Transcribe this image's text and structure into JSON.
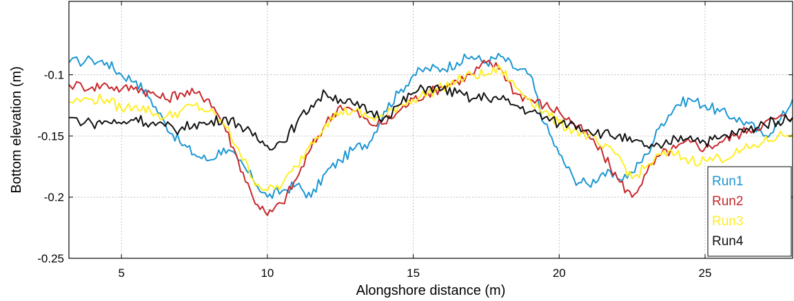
{
  "chart_data": {
    "type": "line",
    "xlabel": "Alongshore distance (m)",
    "ylabel": "Bottom elevation (m)",
    "xlim": [
      3.2,
      28
    ],
    "ylim": [
      -0.25,
      -0.04
    ],
    "xticks": [
      5,
      10,
      15,
      20,
      25
    ],
    "yticks": [
      -0.25,
      -0.2,
      -0.15,
      -0.1
    ],
    "xtick_labels": [
      "5",
      "10",
      "15",
      "20",
      "25"
    ],
    "ytick_labels": [
      "-0.25",
      "-0.2",
      "-0.15",
      "-0.1"
    ],
    "grid": true,
    "legend_position": "bottom-right",
    "series": [
      {
        "name": "Run1",
        "color": "#1a96d2",
        "x": [
          3.2,
          4.0,
          4.5,
          5.0,
          5.5,
          6.0,
          6.5,
          7.0,
          7.5,
          8.0,
          8.5,
          9.0,
          9.5,
          10.0,
          10.5,
          11.0,
          11.5,
          12.0,
          12.5,
          13.0,
          13.5,
          14.0,
          14.5,
          15.0,
          15.5,
          16.0,
          16.5,
          17.0,
          17.5,
          18.0,
          18.5,
          19.0,
          19.5,
          20.0,
          20.5,
          21.0,
          21.5,
          22.0,
          22.5,
          23.0,
          23.5,
          24.0,
          24.5,
          25.0,
          25.5,
          26.0,
          26.5,
          27.0,
          27.5,
          28.0
        ],
        "y": [
          -0.09,
          -0.088,
          -0.09,
          -0.1,
          -0.105,
          -0.12,
          -0.14,
          -0.155,
          -0.165,
          -0.17,
          -0.16,
          -0.17,
          -0.185,
          -0.2,
          -0.195,
          -0.19,
          -0.2,
          -0.18,
          -0.17,
          -0.16,
          -0.155,
          -0.13,
          -0.115,
          -0.1,
          -0.095,
          -0.095,
          -0.09,
          -0.085,
          -0.09,
          -0.085,
          -0.095,
          -0.1,
          -0.14,
          -0.165,
          -0.185,
          -0.19,
          -0.18,
          -0.185,
          -0.18,
          -0.165,
          -0.14,
          -0.125,
          -0.12,
          -0.125,
          -0.13,
          -0.135,
          -0.14,
          -0.15,
          -0.14,
          -0.12
        ]
      },
      {
        "name": "Run2",
        "color": "#c8262b",
        "x": [
          3.2,
          4.0,
          4.5,
          5.0,
          5.5,
          6.0,
          6.5,
          7.0,
          7.5,
          8.0,
          8.5,
          9.0,
          9.5,
          10.0,
          10.5,
          11.0,
          11.5,
          12.0,
          12.5,
          13.0,
          13.5,
          14.0,
          14.5,
          15.0,
          15.5,
          16.0,
          16.5,
          17.0,
          17.5,
          18.0,
          18.5,
          19.0,
          19.5,
          20.0,
          20.5,
          21.0,
          21.5,
          22.0,
          22.5,
          23.0,
          23.5,
          24.0,
          24.5,
          25.0,
          25.5,
          26.0,
          26.5,
          27.0,
          27.5,
          28.0
        ],
        "y": [
          -0.108,
          -0.11,
          -0.108,
          -0.112,
          -0.11,
          -0.115,
          -0.12,
          -0.115,
          -0.115,
          -0.12,
          -0.14,
          -0.17,
          -0.2,
          -0.215,
          -0.205,
          -0.185,
          -0.16,
          -0.14,
          -0.125,
          -0.13,
          -0.14,
          -0.14,
          -0.13,
          -0.12,
          -0.115,
          -0.11,
          -0.105,
          -0.1,
          -0.09,
          -0.095,
          -0.115,
          -0.12,
          -0.125,
          -0.13,
          -0.14,
          -0.15,
          -0.165,
          -0.185,
          -0.2,
          -0.18,
          -0.165,
          -0.16,
          -0.155,
          -0.16,
          -0.155,
          -0.15,
          -0.145,
          -0.14,
          -0.135,
          -0.135
        ]
      },
      {
        "name": "Run3",
        "color": "#ffee22",
        "x": [
          3.2,
          4.0,
          4.5,
          5.0,
          5.5,
          6.0,
          6.5,
          7.0,
          7.5,
          8.0,
          8.5,
          9.0,
          9.5,
          10.0,
          10.5,
          11.0,
          11.5,
          12.0,
          12.5,
          13.0,
          13.5,
          14.0,
          14.5,
          15.0,
          15.5,
          16.0,
          16.5,
          17.0,
          17.5,
          18.0,
          18.5,
          19.0,
          19.5,
          20.0,
          20.5,
          21.0,
          21.5,
          22.0,
          22.5,
          23.0,
          23.5,
          24.0,
          24.5,
          25.0,
          25.5,
          26.0,
          26.5,
          27.0,
          27.5,
          28.0
        ],
        "y": [
          -0.122,
          -0.12,
          -0.12,
          -0.128,
          -0.125,
          -0.13,
          -0.135,
          -0.13,
          -0.125,
          -0.13,
          -0.14,
          -0.16,
          -0.185,
          -0.195,
          -0.19,
          -0.175,
          -0.155,
          -0.14,
          -0.13,
          -0.13,
          -0.135,
          -0.135,
          -0.125,
          -0.12,
          -0.115,
          -0.11,
          -0.105,
          -0.1,
          -0.1,
          -0.095,
          -0.11,
          -0.12,
          -0.13,
          -0.14,
          -0.145,
          -0.15,
          -0.16,
          -0.165,
          -0.185,
          -0.175,
          -0.165,
          -0.165,
          -0.17,
          -0.17,
          -0.168,
          -0.165,
          -0.16,
          -0.155,
          -0.15,
          -0.148
        ]
      },
      {
        "name": "Run4",
        "color": "#111111",
        "x": [
          3.2,
          4.0,
          4.5,
          5.0,
          5.5,
          6.0,
          6.5,
          7.0,
          7.5,
          8.0,
          8.5,
          9.0,
          9.5,
          10.0,
          10.5,
          11.0,
          11.5,
          12.0,
          12.5,
          13.0,
          13.5,
          14.0,
          14.5,
          15.0,
          15.5,
          16.0,
          16.5,
          17.0,
          17.5,
          18.0,
          18.5,
          19.0,
          19.5,
          20.0,
          20.5,
          21.0,
          21.5,
          22.0,
          22.5,
          23.0,
          23.5,
          24.0,
          24.5,
          25.0,
          25.5,
          26.0,
          26.5,
          27.0,
          27.5,
          28.0
        ],
        "y": [
          -0.135,
          -0.14,
          -0.138,
          -0.14,
          -0.135,
          -0.14,
          -0.142,
          -0.145,
          -0.14,
          -0.14,
          -0.135,
          -0.14,
          -0.15,
          -0.158,
          -0.155,
          -0.14,
          -0.125,
          -0.115,
          -0.12,
          -0.125,
          -0.13,
          -0.135,
          -0.125,
          -0.115,
          -0.11,
          -0.112,
          -0.115,
          -0.12,
          -0.118,
          -0.12,
          -0.125,
          -0.13,
          -0.135,
          -0.14,
          -0.14,
          -0.145,
          -0.148,
          -0.15,
          -0.155,
          -0.158,
          -0.16,
          -0.152,
          -0.15,
          -0.155,
          -0.152,
          -0.148,
          -0.145,
          -0.14,
          -0.138,
          -0.135
        ]
      }
    ]
  }
}
